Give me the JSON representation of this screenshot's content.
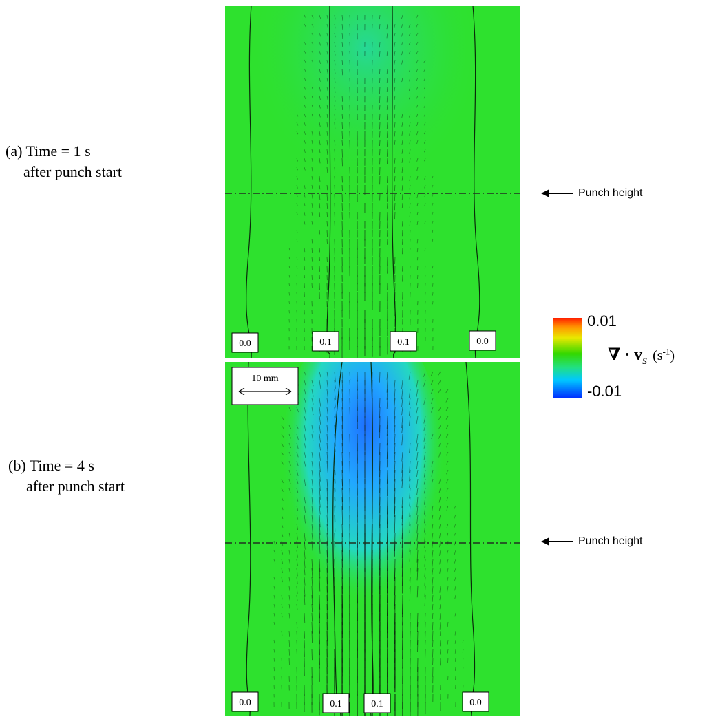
{
  "panels": [
    {
      "caption_line1": "(a)  Time = 1 s",
      "caption_line2": "after punch start",
      "punch_label": "Punch height",
      "contour_labels": [
        "0.0",
        "0.1",
        "0.1",
        "0.0"
      ]
    },
    {
      "caption_line1": "(b)  Time = 4 s",
      "caption_line2": "after punch start",
      "punch_label": "Punch height",
      "contour_labels": [
        "0.0",
        "0.1",
        "0.1",
        "0.0"
      ],
      "scale_bar_label": "10 mm"
    }
  ],
  "colorbar": {
    "max_label": "0.01",
    "min_label": "-0.01",
    "quantity_symbol": "∇ · v",
    "quantity_subscript": "s",
    "unit_prefix": "(s",
    "unit_exponent": "-1",
    "unit_suffix": ")",
    "colors": [
      "#ff1e00",
      "#ff9a00",
      "#e8e800",
      "#33d800",
      "#22e080",
      "#00c8ff",
      "#0030ff"
    ]
  },
  "field_colors": {
    "background": "#2ee12e",
    "low": "#1e8cff"
  }
}
